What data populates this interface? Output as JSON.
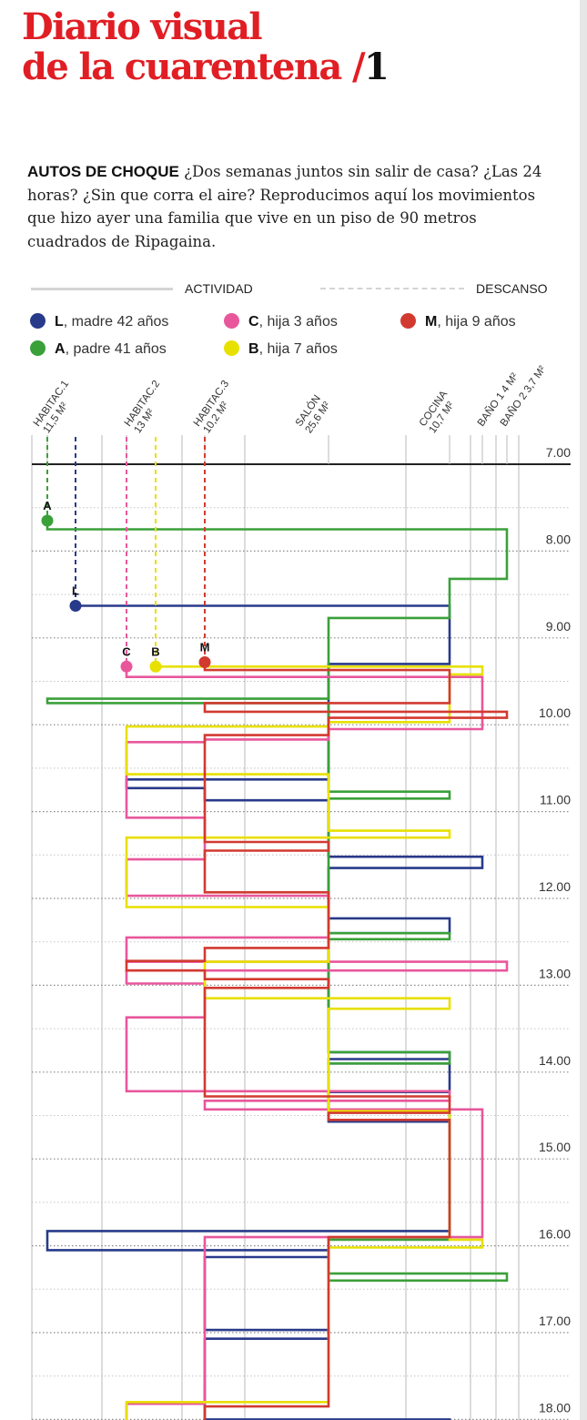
{
  "header": {
    "title_line1": "Diario visual",
    "title_line2": "de la cuarentena /",
    "title_number": "1"
  },
  "intro": {
    "lead": "AUTOS DE CHOQUE",
    "text": " ¿Dos semanas juntos sin salir de casa? ¿Las 24 horas? ¿Sin que corra el aire? Reproducimos aquí los movimientos que hizo ayer una familia que vive en un piso de 90 metros cuadrados de Ripagaina."
  },
  "legend": {
    "activity": "ACTIVIDAD",
    "rest": "DESCANSO",
    "people": [
      {
        "id": "L",
        "desc": ", madre 42 años",
        "color": "#283a8a"
      },
      {
        "id": "C",
        "desc": ", hija 3 años",
        "color": "#e8579c"
      },
      {
        "id": "M",
        "desc": ", hija 9 años",
        "color": "#d23a30"
      },
      {
        "id": "A",
        "desc": ", padre 41 años",
        "color": "#3aa03a"
      },
      {
        "id": "B",
        "desc": ", hija 7 años",
        "color": "#e8e000"
      }
    ]
  },
  "chart_data": {
    "type": "line",
    "x_axis": "habitación",
    "y_axis": "hora",
    "ylim": [
      "7.00",
      "18.00"
    ],
    "rooms": [
      {
        "name": "HABITAC.1",
        "area": "11,5 M²"
      },
      {
        "name": "HABITAC.2",
        "area": "13 M²"
      },
      {
        "name": "HABITAC.3",
        "area": "10,2 M²"
      },
      {
        "name": "SALÓN",
        "area": "25,6 M²"
      },
      {
        "name": "COCINA",
        "area": "10,7 M²"
      },
      {
        "name": "BAÑO 1",
        "area": "4 M²"
      },
      {
        "name": "BAÑO 2",
        "area": "3,7 M²"
      }
    ],
    "time_labels": [
      "7.00",
      "8.00",
      "9.00",
      "10.00",
      "11.00",
      "12.00",
      "13.00",
      "14.00",
      "15.00",
      "16.00",
      "17.00",
      "18.00"
    ],
    "series": [
      {
        "name": "L",
        "color": "#283a8a",
        "rest": {
          "room": "HABITAC.1",
          "from": "7.00",
          "to": "8.63"
        },
        "path": [
          [
            "HABITAC.1",
            8.63
          ],
          [
            "COCINA",
            8.63
          ],
          [
            "COCINA",
            9.3
          ],
          [
            "SALÓN",
            9.3
          ],
          [
            "SALÓN",
            10.63
          ],
          [
            "HABITAC.2",
            10.63
          ],
          [
            "HABITAC.2",
            10.73
          ],
          [
            "HABITAC.3",
            10.73
          ],
          [
            "HABITAC.3",
            10.87
          ],
          [
            "SALÓN",
            10.87
          ],
          [
            "SALÓN",
            11.52
          ],
          [
            "BAÑO 1",
            11.52
          ],
          [
            "BAÑO 1",
            11.65
          ],
          [
            "SALÓN",
            11.65
          ],
          [
            "SALÓN",
            12.23
          ],
          [
            "COCINA",
            12.23
          ],
          [
            "COCINA",
            12.4
          ],
          [
            "SALÓN",
            12.4
          ],
          [
            "SALÓN",
            13.77
          ],
          [
            "COCINA",
            13.77
          ],
          [
            "COCINA",
            13.85
          ],
          [
            "SALÓN",
            13.85
          ],
          [
            "SALÓN",
            13.9
          ],
          [
            "COCINA",
            13.9
          ],
          [
            "COCINA",
            14.23
          ],
          [
            "SALÓN",
            14.23
          ],
          [
            "SALÓN",
            14.57
          ],
          [
            "COCINA",
            14.57
          ],
          [
            "COCINA",
            15.83
          ],
          [
            "HABITAC.1",
            15.83
          ],
          [
            "HABITAC.1",
            16.05
          ],
          [
            "SALÓN",
            16.05
          ],
          [
            "SALÓN",
            16.13
          ],
          [
            "HABITAC.3",
            16.13
          ],
          [
            "HABITAC.3",
            16.97
          ],
          [
            "SALÓN",
            16.97
          ],
          [
            "SALÓN",
            17.07
          ],
          [
            "HABITAC.3",
            17.07
          ],
          [
            "HABITAC.3",
            18.0
          ],
          [
            "COCINA",
            18.0
          ],
          [
            "COCINA",
            18.07
          ]
        ]
      },
      {
        "name": "A",
        "color": "#3aa03a",
        "rest": {
          "room": "HABITAC.1",
          "from": "7.00",
          "to": "7.65"
        },
        "path": [
          [
            "HABITAC.1",
            7.65
          ],
          [
            "HABITAC.1",
            7.75
          ],
          [
            "BAÑO 2",
            7.75
          ],
          [
            "BAÑO 2",
            8.32
          ],
          [
            "COCINA",
            8.32
          ],
          [
            "COCINA",
            8.77
          ],
          [
            "SALÓN",
            8.77
          ],
          [
            "SALÓN",
            9.7
          ],
          [
            "HABITAC.1",
            9.7
          ],
          [
            "HABITAC.1",
            9.75
          ],
          [
            "SALÓN",
            9.75
          ],
          [
            "SALÓN",
            10.77
          ],
          [
            "COCINA",
            10.77
          ],
          [
            "COCINA",
            10.85
          ],
          [
            "SALÓN",
            10.85
          ],
          [
            "SALÓN",
            12.4
          ],
          [
            "COCINA",
            12.4
          ],
          [
            "COCINA",
            12.47
          ],
          [
            "SALÓN",
            12.47
          ],
          [
            "SALÓN",
            13.77
          ],
          [
            "COCINA",
            13.77
          ],
          [
            "COCINA",
            13.9
          ],
          [
            "SALÓN",
            13.9
          ],
          [
            "SALÓN",
            14.45
          ],
          [
            "COCINA",
            14.45
          ],
          [
            "COCINA",
            15.93
          ],
          [
            "SALÓN",
            15.93
          ],
          [
            "SALÓN",
            16.32
          ],
          [
            "BAÑO 2",
            16.32
          ],
          [
            "BAÑO 2",
            16.4
          ],
          [
            "SALÓN",
            16.4
          ]
        ]
      },
      {
        "name": "C",
        "color": "#e8579c",
        "rest": {
          "room": "HABITAC.2",
          "from": "7.00",
          "to": "9.33"
        },
        "path": [
          [
            "HABITAC.2",
            9.33
          ],
          [
            "HABITAC.2",
            9.45
          ],
          [
            "BAÑO 1",
            9.45
          ],
          [
            "BAÑO 1",
            9.8
          ],
          [
            "BAÑO 1",
            10.05
          ],
          [
            "SALÓN",
            10.05
          ],
          [
            "SALÓN",
            10.17
          ],
          [
            "HABITAC.3",
            10.17
          ],
          [
            "HABITAC.3",
            10.2
          ],
          [
            "HABITAC.2",
            10.2
          ],
          [
            "HABITAC.2",
            11.07
          ],
          [
            "HABITAC.3",
            11.07
          ],
          [
            "HABITAC.3",
            11.55
          ],
          [
            "HABITAC.2",
            11.55
          ],
          [
            "HABITAC.2",
            11.97
          ],
          [
            "SALÓN",
            11.97
          ],
          [
            "SALÓN",
            12.45
          ],
          [
            "HABITAC.2",
            12.45
          ],
          [
            "HABITAC.2",
            12.73
          ],
          [
            "BAÑO 2",
            12.73
          ],
          [
            "BAÑO 2",
            12.83
          ],
          [
            "HABITAC.2",
            12.83
          ],
          [
            "HABITAC.2",
            12.98
          ],
          [
            "HABITAC.3",
            12.98
          ],
          [
            "HABITAC.3",
            13.37
          ],
          [
            "HABITAC.2",
            13.37
          ],
          [
            "HABITAC.2",
            14.22
          ],
          [
            "COCINA",
            14.22
          ],
          [
            "COCINA",
            14.33
          ],
          [
            "HABITAC.3",
            14.33
          ],
          [
            "HABITAC.3",
            14.43
          ],
          [
            "BAÑO 1",
            14.43
          ],
          [
            "BAÑO 1",
            15.9
          ],
          [
            "HABITAC.3",
            15.9
          ],
          [
            "HABITAC.3",
            17.82
          ],
          [
            "HABITAC.2",
            17.82
          ],
          [
            "HABITAC.2",
            18.1
          ]
        ]
      },
      {
        "name": "B",
        "color": "#e8e000",
        "rest": {
          "room": "HABITAC.2",
          "from": "7.00",
          "to": "9.33"
        },
        "path": [
          [
            "HABITAC.2",
            9.33
          ],
          [
            "BAÑO 1",
            9.33
          ],
          [
            "BAÑO 1",
            9.42
          ],
          [
            "COCINA",
            9.42
          ],
          [
            "COCINA",
            9.97
          ],
          [
            "SALÓN",
            9.97
          ],
          [
            "SALÓN",
            10.02
          ],
          [
            "HABITAC.2",
            10.02
          ],
          [
            "HABITAC.2",
            10.57
          ],
          [
            "SALÓN",
            10.57
          ],
          [
            "SALÓN",
            11.22
          ],
          [
            "COCINA",
            11.22
          ],
          [
            "COCINA",
            11.3
          ],
          [
            "HABITAC.2",
            11.3
          ],
          [
            "HABITAC.2",
            12.1
          ],
          [
            "SALÓN",
            12.1
          ],
          [
            "SALÓN",
            12.73
          ],
          [
            "HABITAC.3",
            12.73
          ],
          [
            "HABITAC.3",
            13.15
          ],
          [
            "COCINA",
            13.15
          ],
          [
            "COCINA",
            13.27
          ],
          [
            "SALÓN",
            13.27
          ],
          [
            "SALÓN",
            14.45
          ],
          [
            "COCINA",
            14.45
          ],
          [
            "COCINA",
            15.93
          ],
          [
            "BAÑO 1",
            15.93
          ],
          [
            "BAÑO 1",
            16.02
          ],
          [
            "SALÓN",
            16.02
          ],
          [
            "SALÓN",
            17.8
          ],
          [
            "HABITAC.2",
            17.8
          ],
          [
            "HABITAC.2",
            18.08
          ]
        ]
      },
      {
        "name": "M",
        "color": "#d23a30",
        "rest": {
          "room": "HABITAC.3",
          "from": "7.00",
          "to": "9.28"
        },
        "path": [
          [
            "HABITAC.3",
            9.28
          ],
          [
            "HABITAC.3",
            9.37
          ],
          [
            "COCINA",
            9.37
          ],
          [
            "COCINA",
            9.75
          ],
          [
            "HABITAC.3",
            9.75
          ],
          [
            "HABITAC.3",
            9.85
          ],
          [
            "BAÑO 2",
            9.85
          ],
          [
            "BAÑO 2",
            9.92
          ],
          [
            "SALÓN",
            9.92
          ],
          [
            "SALÓN",
            10.12
          ],
          [
            "HABITAC.3",
            10.12
          ],
          [
            "HABITAC.3",
            11.35
          ],
          [
            "SALÓN",
            11.35
          ],
          [
            "SALÓN",
            11.45
          ],
          [
            "HABITAC.3",
            11.45
          ],
          [
            "HABITAC.3",
            11.93
          ],
          [
            "SALÓN",
            11.93
          ],
          [
            "SALÓN",
            12.57
          ],
          [
            "HABITAC.3",
            12.57
          ],
          [
            "HABITAC.3",
            12.72
          ],
          [
            "HABITAC.2",
            12.72
          ],
          [
            "HABITAC.2",
            12.83
          ],
          [
            "HABITAC.3",
            12.83
          ],
          [
            "HABITAC.3",
            12.93
          ],
          [
            "SALÓN",
            12.93
          ],
          [
            "SALÓN",
            13.03
          ],
          [
            "HABITAC.3",
            13.03
          ],
          [
            "HABITAC.3",
            14.28
          ],
          [
            "COCINA",
            14.28
          ],
          [
            "COCINA",
            14.47
          ],
          [
            "SALÓN",
            14.47
          ],
          [
            "SALÓN",
            14.55
          ],
          [
            "COCINA",
            14.55
          ],
          [
            "COCINA",
            15.9
          ],
          [
            "SALÓN",
            15.9
          ],
          [
            "SALÓN",
            17.85
          ],
          [
            "HABITAC.3",
            17.85
          ],
          [
            "HABITAC.3",
            18.1
          ]
        ]
      }
    ]
  }
}
